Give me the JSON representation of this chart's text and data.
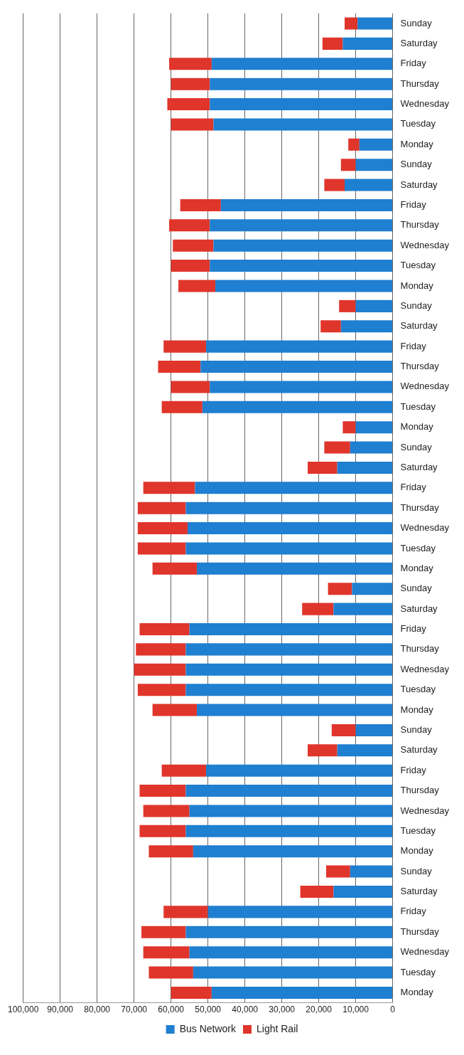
{
  "chart_data": {
    "type": "bar",
    "orientation": "horizontal",
    "stacked": true,
    "categories": [
      "Sunday",
      "Saturday",
      "Friday",
      "Thursday",
      "Wednesday",
      "Tuesday",
      "Monday",
      "Sunday",
      "Saturday",
      "Friday",
      "Thursday",
      "Wednesday",
      "Tuesday",
      "Monday",
      "Sunday",
      "Saturday",
      "Friday",
      "Thursday",
      "Wednesday",
      "Tuesday",
      "Monday",
      "Sunday",
      "Saturday",
      "Friday",
      "Thursday",
      "Wednesday",
      "Tuesday",
      "Monday",
      "Sunday",
      "Saturday",
      "Friday",
      "Thursday",
      "Wednesday",
      "Tuesday",
      "Monday",
      "Sunday",
      "Saturday",
      "Friday",
      "Thursday",
      "Wednesday",
      "Tuesday",
      "Monday",
      "Sunday",
      "Saturday",
      "Friday",
      "Thursday",
      "Wednesday",
      "Tuesday",
      "Monday"
    ],
    "series": [
      {
        "name": "Bus Network",
        "color": "#1f7fd0",
        "values": [
          9500,
          13500,
          49000,
          49500,
          49500,
          48500,
          9000,
          10000,
          13000,
          46500,
          49500,
          48500,
          49500,
          48000,
          10000,
          14000,
          50500,
          52000,
          49500,
          51500,
          10000,
          11500,
          15000,
          53500,
          56000,
          55500,
          56000,
          53000,
          11000,
          16000,
          55000,
          56000,
          56000,
          56000,
          53000,
          10000,
          15000,
          50500,
          56000,
          55000,
          56000,
          54000,
          11500,
          16000,
          50000,
          56000,
          55000,
          54000,
          49000
        ]
      },
      {
        "name": "Light Rail",
        "color": "#e0352b",
        "values": [
          3500,
          5500,
          11500,
          10500,
          11500,
          11500,
          3000,
          4000,
          5500,
          11000,
          11000,
          11000,
          10500,
          10000,
          4500,
          5500,
          11500,
          11500,
          10500,
          11000,
          3500,
          7000,
          8000,
          14000,
          13000,
          13500,
          13000,
          12000,
          6500,
          8500,
          13500,
          13500,
          14000,
          13000,
          12000,
          6500,
          8000,
          12000,
          12500,
          12500,
          12500,
          12000,
          6500,
          9000,
          12000,
          12000,
          12500,
          12000,
          11000
        ]
      }
    ],
    "xlim": [
      100000,
      0
    ],
    "xticks": [
      {
        "value": 100000,
        "label": "100,000"
      },
      {
        "value": 90000,
        "label": "90,000"
      },
      {
        "value": 80000,
        "label": "80,000"
      },
      {
        "value": 70000,
        "label": "70,000"
      },
      {
        "value": 60000,
        "label": "60,000"
      },
      {
        "value": 50000,
        "label": "50,000"
      },
      {
        "value": 40000,
        "label": "40,000"
      },
      {
        "value": 30000,
        "label": "30,000"
      },
      {
        "value": 20000,
        "label": "20,000"
      },
      {
        "value": 10000,
        "label": "10,000"
      },
      0
    ],
    "grid": "x",
    "legend": "bottom"
  }
}
